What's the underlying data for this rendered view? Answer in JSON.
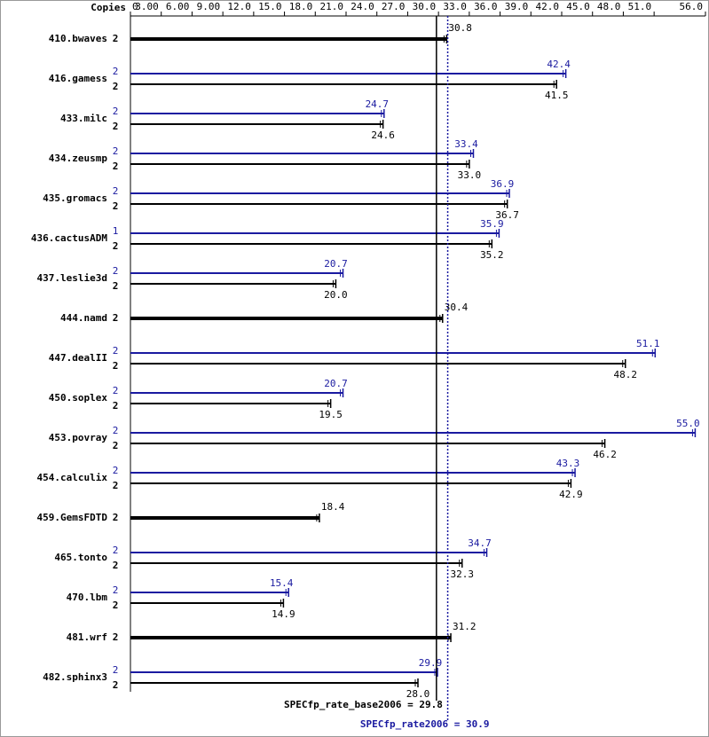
{
  "chart_data": {
    "type": "bar",
    "orientation": "horizontal",
    "x_label": "Copies",
    "categories": [
      "410.bwaves",
      "416.gamess",
      "433.milc",
      "434.zeusmp",
      "435.gromacs",
      "436.cactusADM",
      "437.leslie3d",
      "444.namd",
      "447.dealII",
      "450.soplex",
      "453.povray",
      "454.calculix",
      "459.GemsFDTD",
      "465.tonto",
      "470.lbm",
      "481.wrf",
      "482.sphinx3"
    ],
    "series": [
      {
        "color": "#1a1aa0",
        "copies": [
          null,
          2,
          2,
          2,
          2,
          1,
          2,
          null,
          2,
          2,
          2,
          2,
          null,
          2,
          2,
          null,
          2
        ],
        "values": [
          null,
          42.4,
          24.7,
          33.4,
          36.9,
          35.9,
          20.7,
          null,
          51.1,
          20.7,
          55.0,
          43.3,
          null,
          34.7,
          15.4,
          null,
          29.9
        ],
        "value_labels": [
          null,
          "42.4",
          "24.7",
          "33.4",
          "36.9",
          "35.9",
          "20.7",
          null,
          "51.1",
          "20.7",
          "55.0",
          "43.3",
          null,
          "34.7",
          "15.4",
          null,
          "29.9"
        ]
      },
      {
        "color": "#000000",
        "copies": [
          2,
          2,
          2,
          2,
          2,
          2,
          2,
          2,
          2,
          2,
          2,
          2,
          2,
          2,
          2,
          2,
          2
        ],
        "values": [
          30.8,
          41.5,
          24.6,
          33.0,
          36.7,
          35.2,
          20.0,
          30.4,
          48.2,
          19.5,
          46.2,
          42.9,
          18.4,
          32.3,
          14.9,
          31.2,
          28.0
        ],
        "value_labels": [
          "30.8",
          "41.5",
          "24.6",
          "33.0",
          "36.7",
          "35.2",
          "20.0",
          "30.4",
          "48.2",
          "19.5",
          "46.2",
          "42.9",
          "18.4",
          "32.3",
          "14.9",
          "31.2",
          "28.0"
        ]
      }
    ],
    "xlim": [
      0,
      56
    ],
    "xticks": [
      0,
      {
        "value": 3,
        "label": "3.00"
      },
      {
        "value": 6,
        "label": "6.00"
      },
      {
        "value": 9,
        "label": "9.00"
      },
      {
        "value": 12,
        "label": "12.0"
      },
      {
        "value": 15,
        "label": "15.0"
      },
      {
        "value": 18,
        "label": "18.0"
      },
      {
        "value": 21,
        "label": "21.0"
      },
      {
        "value": 24,
        "label": "24.0"
      },
      {
        "value": 27,
        "label": "27.0"
      },
      {
        "value": 30,
        "label": "30.0"
      },
      {
        "value": 33,
        "label": "33.0"
      },
      {
        "value": 36,
        "label": "36.0"
      },
      {
        "value": 39,
        "label": "39.0"
      },
      {
        "value": 42,
        "label": "42.0"
      },
      {
        "value": 45,
        "label": "45.0"
      },
      {
        "value": 48,
        "label": "48.0"
      },
      {
        "value": 51,
        "label": "51.0"
      },
      {
        "value": 56,
        "label": "56.0"
      }
    ],
    "reference_lines": [
      {
        "value": 29.8,
        "label": "SPECfp_rate_base2006 = 29.8",
        "color": "#000000",
        "style": "solid"
      },
      {
        "value": 30.9,
        "label": "SPECfp_rate2006 = 30.9",
        "color": "#1a1aa0",
        "style": "dotted"
      }
    ]
  }
}
